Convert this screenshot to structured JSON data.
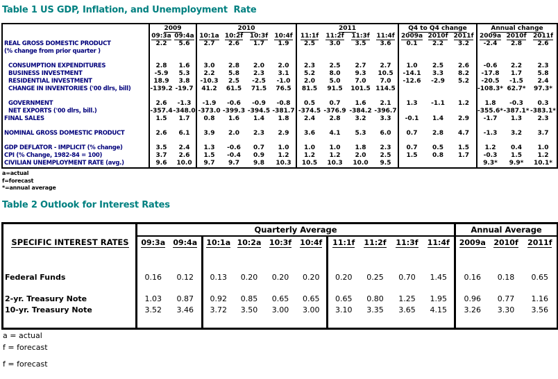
{
  "table1": {
    "title": "Table 1 US GDP, Inflation, and Unemployment  Rate",
    "corner_label": "",
    "groups": [
      {
        "label": "2009",
        "cols": [
          "09:3a",
          "09:4a"
        ]
      },
      {
        "label": "2010",
        "cols": [
          "10:1a",
          "10:2f",
          "10:3f",
          "10:4f"
        ]
      },
      {
        "label": "2011",
        "cols": [
          "11:1f",
          "11:2f",
          "11:3f",
          "11:4f"
        ]
      },
      {
        "label": "Q4 to Q4 change",
        "cols": [
          "2009a",
          "2010f",
          "2011f"
        ]
      },
      {
        "label": "Annual change",
        "cols": [
          "2009a",
          "2010f",
          "2011f"
        ]
      }
    ],
    "rows": [
      {
        "label": "REAL GROSS DOMESTIC PRODUCT",
        "sublabel": "(% change from prior quarter )",
        "values": [
          "2.2",
          "5.6",
          "2.7",
          "2.6",
          "1.7",
          "1.9",
          "2.5",
          "3.0",
          "3.5",
          "3.6",
          "0.1",
          "2.2",
          "3.2",
          "-2.4",
          "2.8",
          "2.6"
        ]
      },
      {
        "spacer": true
      },
      {
        "label": "CONSUMPTION EXPENDITURES",
        "indent": true,
        "values": [
          "2.8",
          "1.6",
          "3.0",
          "2.8",
          "2.0",
          "2.0",
          "2.3",
          "2.5",
          "2.7",
          "2.7",
          "1.0",
          "2.5",
          "2.6",
          "-0.6",
          "2.2",
          "2.3"
        ]
      },
      {
        "label": "BUSINESS INVESTMENT",
        "indent": true,
        "values": [
          "-5.9",
          "5.3",
          "2.2",
          "5.8",
          "2.3",
          "3.1",
          "5.2",
          "8.0",
          "9.3",
          "10.5",
          "-14.1",
          "3.3",
          "8.2",
          "-17.8",
          "1.7",
          "5.8"
        ]
      },
      {
        "label": "RESIDENTIAL INVESTMENT",
        "indent": true,
        "values": [
          "18.9",
          "3.8",
          "-10.3",
          "2.5",
          "-2.5",
          "-1.0",
          "2.0",
          "5.0",
          "7.0",
          "7.0",
          "-12.6",
          "-2.9",
          "5.2",
          "-20.5",
          "-1.5",
          "2.4"
        ]
      },
      {
        "label": "CHANGE IN INVENTORIES ('00 dlrs, bill)",
        "indent": true,
        "values": [
          "-139.2",
          "-19.7",
          "41.2",
          "61.5",
          "71.5",
          "76.5",
          "81.5",
          "91.5",
          "101.5",
          "114.5",
          "",
          "",
          "",
          "-108.3*",
          "62.7*",
          "97.3*"
        ]
      },
      {
        "spacer": true
      },
      {
        "label": "GOVERNMENT",
        "indent": true,
        "values": [
          "2.6",
          "-1.3",
          "-1.9",
          "-0.6",
          "-0.9",
          "-0.8",
          "0.5",
          "0.7",
          "1.6",
          "2.1",
          "1.3",
          "-1.1",
          "1.2",
          "1.8",
          "-0.3",
          "0.3"
        ]
      },
      {
        "label": "NET EXPORTS ('00 dlrs, bill.)",
        "indent": true,
        "values": [
          "-357.4",
          "-348.0",
          "-373.0",
          "-399.3",
          "-394.5",
          "-381.7",
          "-374.5",
          "-376.9",
          "-384.2",
          "-396.7",
          "",
          "",
          "",
          "-355.6*",
          "-387.1*",
          "-383.1*"
        ]
      },
      {
        "label": "FINAL SALES",
        "values": [
          "1.5",
          "1.7",
          "0.8",
          "1.6",
          "1.4",
          "1.8",
          "2.4",
          "2.8",
          "3.2",
          "3.3",
          "-0.1",
          "1.4",
          "2.9",
          "-1.7",
          "1.3",
          "2.3"
        ]
      },
      {
        "spacer": true
      },
      {
        "label": "NOMINAL GROSS DOMESTIC PRODUCT",
        "values": [
          "2.6",
          "6.1",
          "3.9",
          "2.0",
          "2.3",
          "2.9",
          "3.6",
          "4.1",
          "5.3",
          "6.0",
          "0.7",
          "2.8",
          "4.7",
          "-1.3",
          "3.2",
          "3.7"
        ]
      },
      {
        "spacer": true
      },
      {
        "label": "GDP DEFLATOR - IMPLICIT (% change)",
        "values": [
          "3.5",
          "2.4",
          "1.3",
          "-0.6",
          "0.7",
          "1.0",
          "1.0",
          "1.0",
          "1.8",
          "2.3",
          "0.7",
          "0.5",
          "1.5",
          "1.2",
          "0.4",
          "1.0"
        ]
      },
      {
        "label": "CPI (% Change, 1982-84 = 100)",
        "values": [
          "3.7",
          "2.6",
          "1.5",
          "-0.4",
          "0.9",
          "1.2",
          "1.2",
          "1.2",
          "2.0",
          "2.5",
          "1.5",
          "0.8",
          "1.7",
          "-0.3",
          "1.5",
          "1.2"
        ]
      },
      {
        "label": "CIVILIAN UNEMPLOYMENT RATE (avg.)",
        "values": [
          "9.6",
          "10.0",
          "9.7",
          "9.7",
          "9.8",
          "10.3",
          "10.5",
          "10.3",
          "10.0",
          "9.5",
          "",
          "",
          "",
          "9.3*",
          "9.9*",
          "10.1*"
        ]
      }
    ],
    "footnotes": [
      "a=actual",
      "f=forecast",
      "*=annual average"
    ]
  },
  "table2": {
    "title": "Table 2 Outlook for Interest Rates",
    "corner_label": "SPECIFIC INTEREST RATES",
    "super_groups": [
      {
        "label": "Quarterly Average",
        "span": 10
      },
      {
        "label": "Annual Average",
        "span": 3
      }
    ],
    "groups": [
      {
        "label": "",
        "cols": [
          "09:3a",
          "09:4a"
        ]
      },
      {
        "label": "",
        "cols": [
          "10:1a",
          "10:2a",
          "10:3f",
          "10:4f"
        ]
      },
      {
        "label": "",
        "cols": [
          "11:1f",
          "11:2f",
          "11:3f",
          "11:4f"
        ]
      },
      {
        "label": "",
        "cols": [
          "2009a",
          "2010f",
          "2011f"
        ]
      }
    ],
    "rows": [
      {
        "spacer": true
      },
      {
        "label": "Federal Funds",
        "values": [
          "0.16",
          "0.12",
          "0.13",
          "0.20",
          "0.20",
          "0.20",
          "0.20",
          "0.25",
          "0.70",
          "1.45",
          "0.16",
          "0.18",
          "0.65"
        ]
      },
      {
        "spacer": true
      },
      {
        "label": "2-yr. Treasury Note",
        "values": [
          "1.03",
          "0.87",
          "0.92",
          "0.85",
          "0.65",
          "0.65",
          "0.65",
          "0.80",
          "1.25",
          "1.95",
          "0.96",
          "0.77",
          "1.16"
        ]
      },
      {
        "label": "10-yr. Treasury Note",
        "values": [
          "3.52",
          "3.46",
          "3.72",
          "3.50",
          "3.00",
          "3.00",
          "3.10",
          "3.35",
          "3.65",
          "4.15",
          "3.26",
          "3.30",
          "3.56"
        ]
      },
      {
        "spacer": true
      }
    ],
    "notes": [
      "a = actual",
      "f = forecast"
    ],
    "extra_note": "f = forecast"
  },
  "colors": {
    "title_teal": "#008080",
    "label_navy": "#00007b",
    "ink": "#000000"
  }
}
